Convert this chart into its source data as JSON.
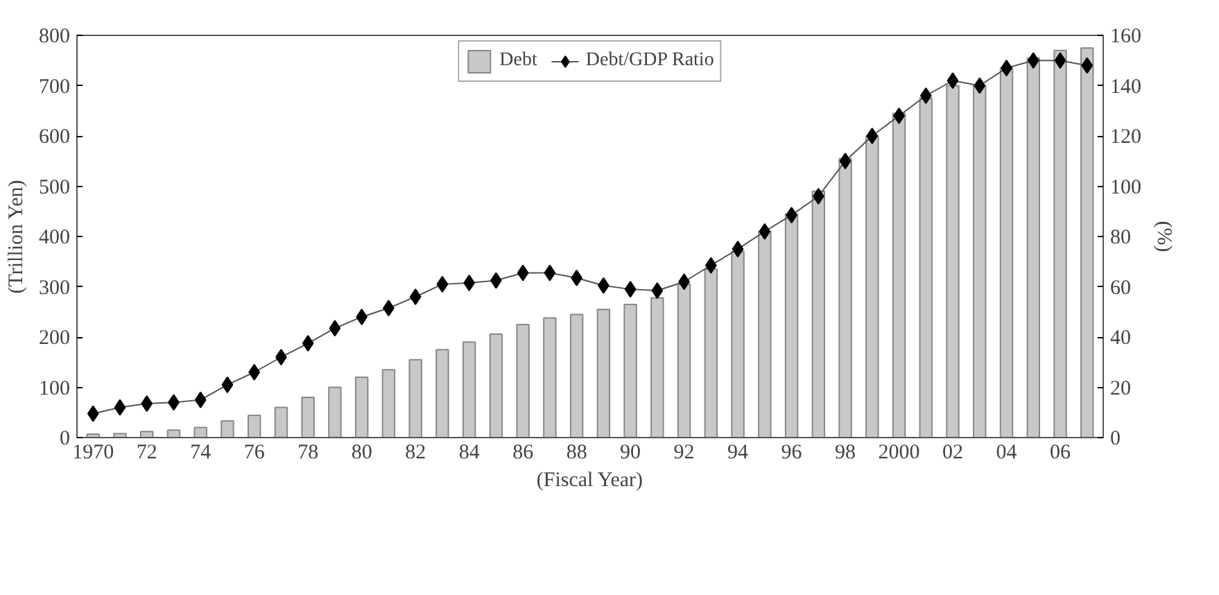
{
  "chart_data": {
    "type": "bar",
    "xlabel": "(Fiscal Year)",
    "ylabel": "(Trillion Yen)",
    "y2label": "(%)",
    "categories": [
      "1970",
      null,
      "72",
      null,
      "74",
      null,
      "76",
      null,
      "78",
      null,
      "80",
      null,
      "82",
      null,
      "84",
      null,
      "86",
      null,
      "88",
      null,
      "90",
      null,
      "92",
      null,
      "94",
      null,
      "96",
      null,
      "98",
      null,
      "2000",
      null,
      "02",
      null,
      "04",
      null,
      "06",
      null
    ],
    "series": [
      {
        "name": "Debt",
        "color": "#c8c8c8",
        "values": [
          7,
          8,
          12,
          15,
          20,
          33,
          44,
          60,
          80,
          100,
          120,
          135,
          155,
          175,
          190,
          206,
          225,
          238,
          245,
          255,
          265,
          278,
          305,
          335,
          370,
          410,
          445,
          490,
          555,
          600,
          645,
          675,
          700,
          700,
          735,
          755,
          770,
          775
        ]
      },
      {
        "name": "Debt/GDP Ratio",
        "type": "line",
        "axis": "y2",
        "color": "#000000",
        "values": [
          9.5,
          12,
          13.5,
          14,
          15,
          21,
          26,
          32,
          37.5,
          43.5,
          48,
          51.5,
          56,
          61,
          61.5,
          62.5,
          65.5,
          65.5,
          63.5,
          60.5,
          59,
          58.5,
          62,
          68.5,
          75,
          82,
          88.5,
          96,
          110,
          120,
          128,
          136,
          142,
          140,
          147,
          150,
          150,
          148
        ]
      }
    ],
    "ylim": [
      0,
      800
    ],
    "yticks": [
      0,
      100,
      200,
      300,
      400,
      500,
      600,
      700,
      800
    ],
    "y2lim": [
      0,
      160
    ],
    "y2ticks": [
      0,
      20,
      40,
      60,
      80,
      100,
      120,
      140,
      160
    ],
    "marker": "diamond",
    "legend": "top",
    "grid": false
  }
}
